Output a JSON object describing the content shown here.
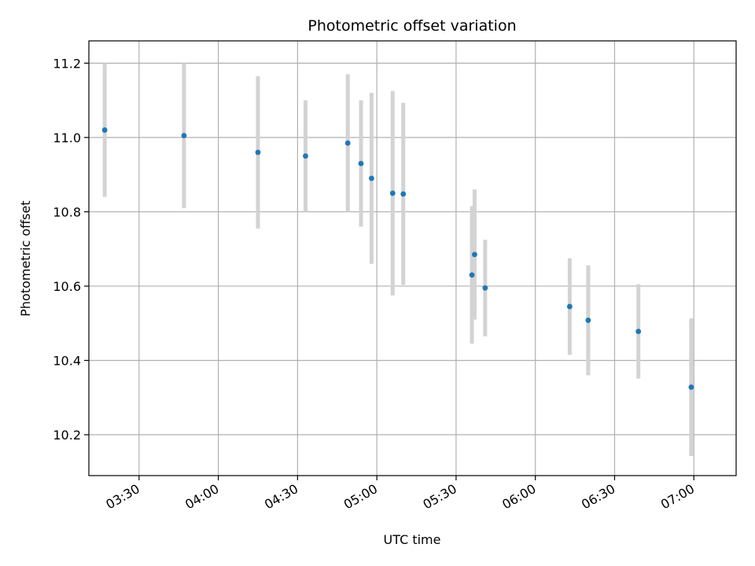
{
  "chart_data": {
    "type": "scatter",
    "title": "Photometric offset variation",
    "xlabel": "UTC time",
    "ylabel": "Photometric offset",
    "x_unit": "UTC time (HH:MM)",
    "xlim": [
      "03:11",
      "07:16"
    ],
    "ylim": [
      10.09,
      11.26
    ],
    "x_ticks": [
      "03:30",
      "04:00",
      "04:30",
      "05:00",
      "05:30",
      "06:00",
      "06:30",
      "07:00"
    ],
    "y_ticks": [
      10.2,
      10.4,
      10.6,
      10.8,
      11.0,
      11.2
    ],
    "y_tick_labels": [
      "10.2",
      "10.4",
      "10.6",
      "10.8",
      "11.0",
      "11.2"
    ],
    "grid": true,
    "x_tick_rotation_deg": 30,
    "colors": {
      "points": "#1f77b4",
      "errorbars": "#d3d3d3",
      "grid": "#b0b0b0",
      "axes": "#000000"
    },
    "points": [
      {
        "time": "03:17",
        "y": 11.02,
        "err": 0.18
      },
      {
        "time": "03:47",
        "y": 11.005,
        "err": 0.195
      },
      {
        "time": "04:15",
        "y": 10.96,
        "err": 0.205
      },
      {
        "time": "04:33",
        "y": 10.95,
        "err": 0.15
      },
      {
        "time": "04:49",
        "y": 10.985,
        "err": 0.185
      },
      {
        "time": "04:54",
        "y": 10.93,
        "err": 0.17
      },
      {
        "time": "04:58",
        "y": 10.89,
        "err": 0.23
      },
      {
        "time": "05:06",
        "y": 10.85,
        "err": 0.275
      },
      {
        "time": "05:10",
        "y": 10.848,
        "err": 0.245
      },
      {
        "time": "05:36",
        "y": 10.63,
        "err": 0.185
      },
      {
        "time": "05:37",
        "y": 10.685,
        "err": 0.175
      },
      {
        "time": "05:41",
        "y": 10.595,
        "err": 0.13
      },
      {
        "time": "06:13",
        "y": 10.545,
        "err": 0.13
      },
      {
        "time": "06:20",
        "y": 10.508,
        "err": 0.148
      },
      {
        "time": "06:39",
        "y": 10.478,
        "err": 0.127
      },
      {
        "time": "06:59",
        "y": 10.328,
        "err": 0.185
      }
    ]
  }
}
